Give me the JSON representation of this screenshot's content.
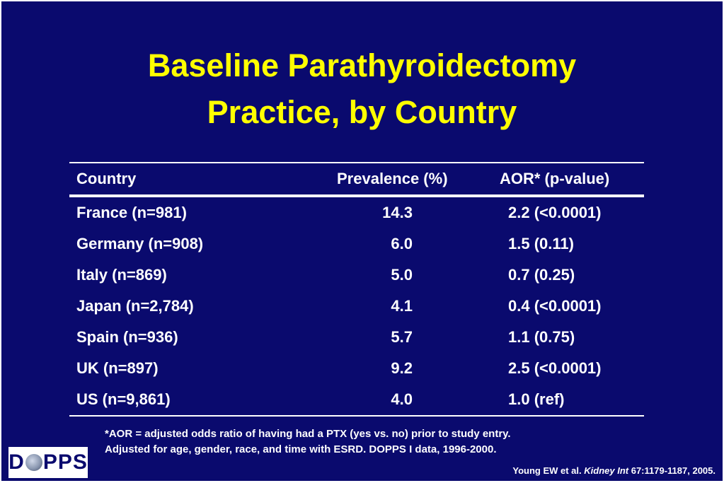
{
  "title": {
    "line1": "Baseline Parathyroidectomy",
    "line2": "Practice, by Country"
  },
  "table": {
    "headers": {
      "country": "Country",
      "prevalence": "Prevalence (%)",
      "aor": "AOR* (p-value)"
    },
    "rows": [
      {
        "country": "France (n=981)",
        "prevalence": "14.3",
        "aor": "2.2 (<0.0001)"
      },
      {
        "country": "Germany (n=908)",
        "prevalence": "6.0",
        "aor": "1.5 (0.11)"
      },
      {
        "country": "Italy (n=869)",
        "prevalence": "5.0",
        "aor": "0.7 (0.25)"
      },
      {
        "country": "Japan (n=2,784)",
        "prevalence": "4.1",
        "aor": "0.4 (<0.0001)"
      },
      {
        "country": "Spain (n=936)",
        "prevalence": "5.7",
        "aor": "1.1 (0.75)"
      },
      {
        "country": "UK (n=897)",
        "prevalence": "9.2",
        "aor": "2.5 (<0.0001)"
      },
      {
        "country": "US (n=9,861)",
        "prevalence": "4.0",
        "aor": "1.0 (ref)"
      }
    ]
  },
  "footnote": {
    "line1": "*AOR = adjusted odds ratio of having had a PTX (yes vs. no) prior to study entry.",
    "line2": "Adjusted for age, gender, race, and time with ESRD. DOPPS I data, 1996-2000."
  },
  "citation": {
    "authors": "Young EW et al.",
    "journal": "Kidney Int",
    "ref": "67:1179-1187, 2005."
  },
  "logo": {
    "text_before": "D",
    "text_after": "PPS",
    "icon": "globe-icon"
  },
  "colors": {
    "background": "#0a0a6e",
    "title": "#ffff00",
    "text": "#ffffff"
  }
}
